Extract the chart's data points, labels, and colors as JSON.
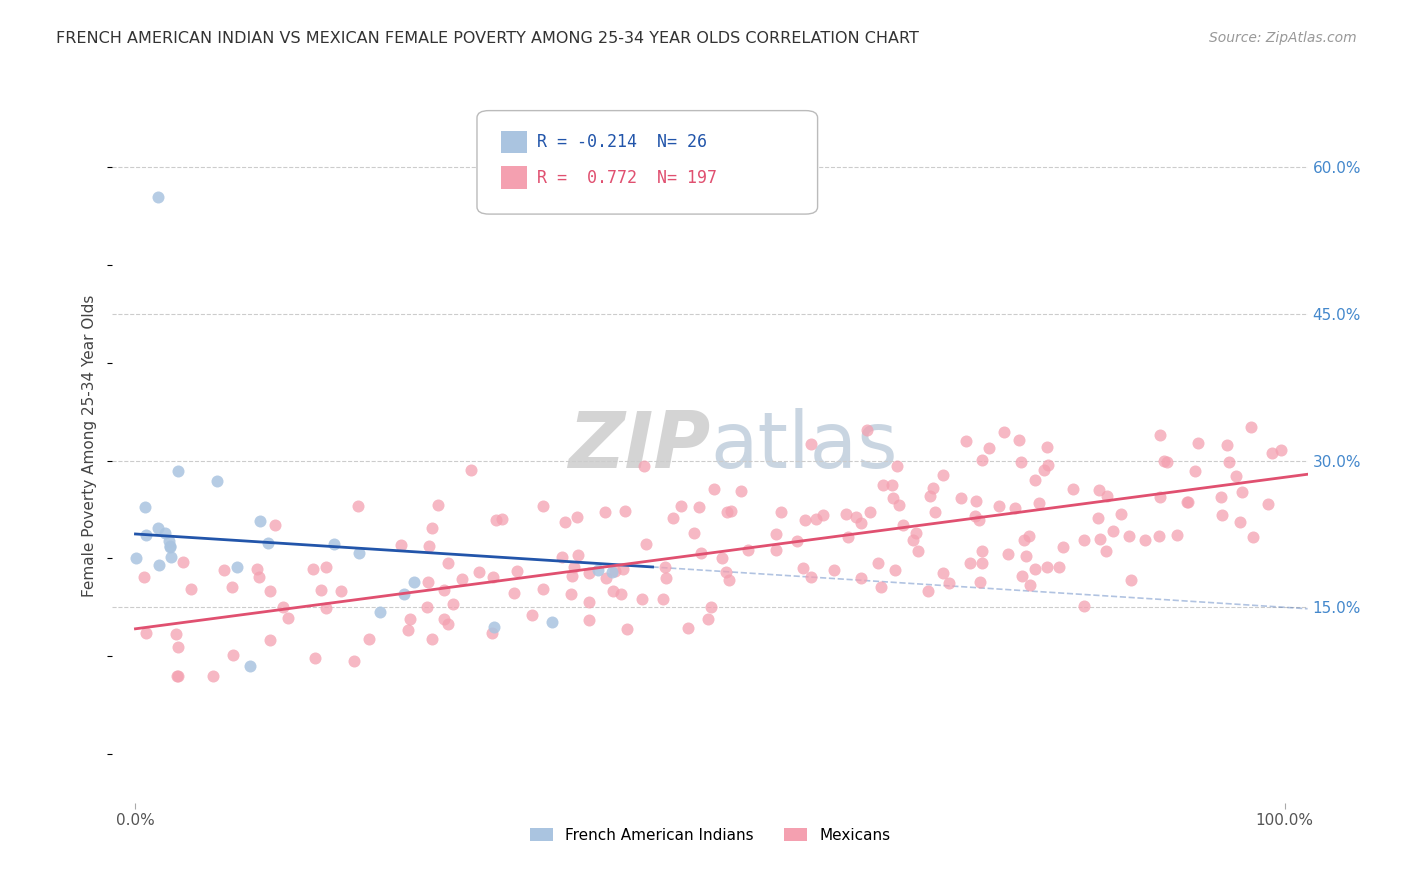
{
  "title": "FRENCH AMERICAN INDIAN VS MEXICAN FEMALE POVERTY AMONG 25-34 YEAR OLDS CORRELATION CHART",
  "source": "Source: ZipAtlas.com",
  "ylabel": "Female Poverty Among 25-34 Year Olds",
  "xlim": [
    -2,
    102
  ],
  "ylim": [
    -5,
    68
  ],
  "yticks": [
    15,
    30,
    45,
    60
  ],
  "ytick_labels": [
    "15.0%",
    "30.0%",
    "45.0%",
    "60.0%"
  ],
  "blue_R": -0.214,
  "blue_N": 26,
  "pink_R": 0.772,
  "pink_N": 197,
  "blue_color": "#aac4e0",
  "blue_line_color": "#2255aa",
  "pink_color": "#f4a0b0",
  "pink_line_color": "#e05070",
  "legend_label_blue": "French American Indians",
  "legend_label_pink": "Mexicans",
  "slope_blue": -0.075,
  "intercept_blue": 22.5,
  "slope_pink": 0.155,
  "intercept_pink": 12.8
}
